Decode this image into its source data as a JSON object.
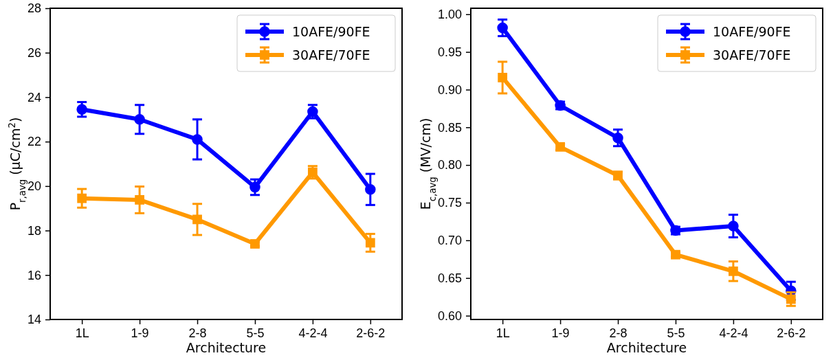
{
  "chart_data": [
    {
      "type": "line",
      "xlabel": "Architecture",
      "ylabel": "P$_{r,avg}$ (μC/cm$^{2}$)",
      "categories": [
        "1L",
        "1-9",
        "2-8",
        "5-5",
        "4-2-4",
        "2-6-2"
      ],
      "ylim": [
        14,
        28
      ],
      "yticks": [
        14,
        16,
        18,
        20,
        22,
        24,
        26,
        28
      ],
      "legend": "top right",
      "grid": false,
      "series": [
        {
          "name": "10AFE/90FE",
          "color": "#0000ff",
          "marker": "circle",
          "values": [
            23.45,
            23.0,
            22.1,
            19.95,
            23.35,
            19.85
          ],
          "errors": [
            0.33,
            0.65,
            0.9,
            0.35,
            0.3,
            0.7
          ]
        },
        {
          "name": "30AFE/70FE",
          "color": "#ff9900",
          "marker": "square",
          "values": [
            19.45,
            19.38,
            18.5,
            17.4,
            20.62,
            17.45
          ],
          "errors": [
            0.42,
            0.6,
            0.7,
            0.1,
            0.28,
            0.4
          ]
        }
      ]
    },
    {
      "type": "line",
      "xlabel": "Architecture",
      "ylabel": "E$_{c,avg}$ (MV/cm)",
      "categories": [
        "1L",
        "1-9",
        "2-8",
        "5-5",
        "4-2-4",
        "2-6-2"
      ],
      "ylim": [
        0.595,
        1.008
      ],
      "yticks": [
        {
          "value": 0.6,
          "label": "0.60"
        },
        {
          "value": 0.65,
          "label": "0.65"
        },
        {
          "value": 0.7,
          "label": "0.70"
        },
        {
          "value": 0.75,
          "label": "0.75"
        },
        {
          "value": 0.8,
          "label": "0.80"
        },
        {
          "value": 0.85,
          "label": "0.85"
        },
        {
          "value": 0.9,
          "label": "0.90"
        },
        {
          "value": 0.95,
          "label": "0.95"
        },
        {
          "value": 1.0,
          "label": "1.00"
        }
      ],
      "legend": "top right",
      "grid": false,
      "series": [
        {
          "name": "10AFE/90FE",
          "color": "#0000ff",
          "marker": "circle",
          "values": [
            0.982,
            0.879,
            0.836,
            0.713,
            0.719,
            0.633
          ],
          "errors": [
            0.011,
            0.005,
            0.011,
            0.005,
            0.015,
            0.012
          ]
        },
        {
          "name": "30AFE/70FE",
          "color": "#ff9900",
          "marker": "square",
          "values": [
            0.916,
            0.824,
            0.786,
            0.681,
            0.659,
            0.622
          ],
          "errors": [
            0.021,
            0.004,
            0.005,
            0.003,
            0.013,
            0.009
          ]
        }
      ]
    }
  ]
}
